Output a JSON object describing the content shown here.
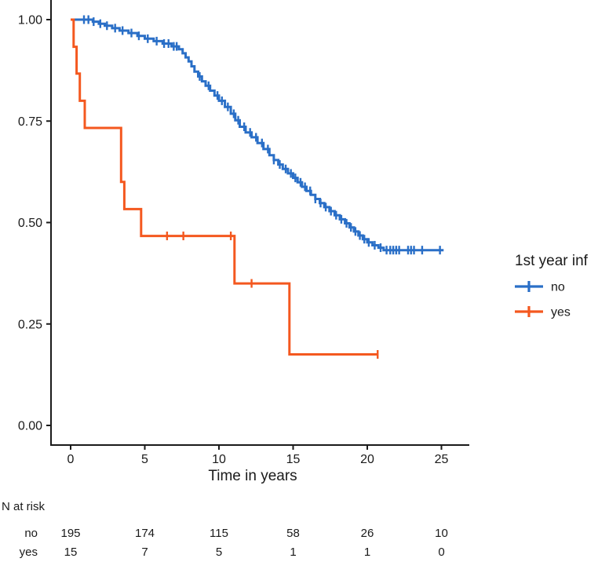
{
  "colors": {
    "no": "#2A6FC7",
    "yes": "#F4581F",
    "axis": "#1a1a1a",
    "text": "#1a1a1a",
    "background": "#ffffff"
  },
  "chart_data": {
    "type": "line",
    "subtype": "kaplan-meier-step-curve",
    "title": "",
    "xlabel": "Time in years",
    "ylabel": "",
    "xlim": [
      0,
      25
    ],
    "ylim": [
      0.0,
      1.0
    ],
    "grid": false,
    "x_ticks": [
      {
        "v": 0,
        "label": "0"
      },
      {
        "v": 5,
        "label": "5"
      },
      {
        "v": 10,
        "label": "10"
      },
      {
        "v": 15,
        "label": "15"
      },
      {
        "v": 20,
        "label": "20"
      },
      {
        "v": 25,
        "label": "25"
      }
    ],
    "y_ticks": [
      {
        "v": 1.0,
        "label": "1.00"
      },
      {
        "v": 0.75,
        "label": "0.75"
      },
      {
        "v": 0.5,
        "label": "0.50"
      },
      {
        "v": 0.25,
        "label": "0.25"
      },
      {
        "v": 0.0,
        "label": "0.00"
      }
    ],
    "legend": {
      "title": "1st year inf",
      "position": "right",
      "entries": [
        {
          "label": "no",
          "color": "#2A6FC7"
        },
        {
          "label": "yes",
          "color": "#F4581F"
        }
      ]
    },
    "series": [
      {
        "name": "no",
        "color": "#2A6FC7",
        "steps": [
          [
            0,
            1.0
          ],
          [
            1.5,
            0.995
          ],
          [
            1.9,
            0.99
          ],
          [
            2.3,
            0.985
          ],
          [
            2.8,
            0.979
          ],
          [
            3.3,
            0.973
          ],
          [
            3.9,
            0.967
          ],
          [
            4.5,
            0.96
          ],
          [
            5.0,
            0.953
          ],
          [
            5.6,
            0.947
          ],
          [
            6.2,
            0.941
          ],
          [
            6.8,
            0.934
          ],
          [
            7.3,
            0.927
          ],
          [
            7.55,
            0.917
          ],
          [
            7.75,
            0.907
          ],
          [
            7.95,
            0.897
          ],
          [
            8.15,
            0.885
          ],
          [
            8.35,
            0.872
          ],
          [
            8.6,
            0.86
          ],
          [
            8.85,
            0.848
          ],
          [
            9.1,
            0.837
          ],
          [
            9.4,
            0.825
          ],
          [
            9.7,
            0.813
          ],
          [
            10.0,
            0.8
          ],
          [
            10.4,
            0.785
          ],
          [
            10.8,
            0.768
          ],
          [
            11.1,
            0.752
          ],
          [
            11.4,
            0.736
          ],
          [
            11.8,
            0.722
          ],
          [
            12.2,
            0.71
          ],
          [
            12.6,
            0.696
          ],
          [
            13.0,
            0.681
          ],
          [
            13.4,
            0.666
          ],
          [
            13.7,
            0.654
          ],
          [
            14.0,
            0.643
          ],
          [
            14.3,
            0.632
          ],
          [
            14.65,
            0.621
          ],
          [
            15.0,
            0.61
          ],
          [
            15.3,
            0.599
          ],
          [
            15.6,
            0.588
          ],
          [
            15.9,
            0.578
          ],
          [
            16.2,
            0.568
          ],
          [
            16.5,
            0.558
          ],
          [
            16.8,
            0.548
          ],
          [
            17.1,
            0.538
          ],
          [
            17.45,
            0.528
          ],
          [
            17.8,
            0.518
          ],
          [
            18.15,
            0.508
          ],
          [
            18.5,
            0.498
          ],
          [
            18.8,
            0.488
          ],
          [
            19.1,
            0.478
          ],
          [
            19.4,
            0.468
          ],
          [
            19.7,
            0.459
          ],
          [
            20.0,
            0.451
          ],
          [
            20.35,
            0.444
          ],
          [
            20.75,
            0.438
          ],
          [
            21.1,
            0.432
          ]
        ],
        "end_time": 25.15,
        "censor_times": [
          0.9,
          1.2,
          1.55,
          2.0,
          2.45,
          3.0,
          3.5,
          4.1,
          4.6,
          5.2,
          5.8,
          6.3,
          6.6,
          6.95,
          7.15,
          8.7,
          9.3,
          9.9,
          10.2,
          10.6,
          11.0,
          11.3,
          11.7,
          12.1,
          12.5,
          12.9,
          13.3,
          13.7,
          14.1,
          14.5,
          14.85,
          15.15,
          15.5,
          15.8,
          16.15,
          16.5,
          16.85,
          17.2,
          17.55,
          17.9,
          18.25,
          18.6,
          18.9,
          19.2,
          19.5,
          19.8,
          20.1,
          20.5,
          20.9,
          21.3,
          21.55,
          21.75,
          21.95,
          22.15,
          22.75,
          22.95,
          23.15,
          23.7,
          24.9
        ]
      },
      {
        "name": "yes",
        "color": "#F4581F",
        "steps": [
          [
            0,
            1.0
          ],
          [
            0.2,
            0.933
          ],
          [
            0.4,
            0.867
          ],
          [
            0.62,
            0.8
          ],
          [
            0.95,
            0.733
          ],
          [
            3.4,
            0.6
          ],
          [
            3.62,
            0.533
          ],
          [
            4.75,
            0.467
          ],
          [
            11.05,
            0.35
          ],
          [
            14.75,
            0.175
          ]
        ],
        "end_time": 20.7,
        "censor_times": [
          6.5,
          7.6,
          10.8,
          12.2,
          20.7
        ]
      }
    ],
    "risk_table": {
      "header": "N at risk",
      "times": [
        0,
        5,
        10,
        15,
        20,
        25
      ],
      "rows": [
        {
          "label": "no",
          "color": "#2A6FC7",
          "counts": [
            195,
            174,
            115,
            58,
            26,
            10
          ]
        },
        {
          "label": "yes",
          "color": "#F4581F",
          "counts": [
            15,
            7,
            5,
            1,
            1,
            0
          ]
        }
      ]
    }
  }
}
